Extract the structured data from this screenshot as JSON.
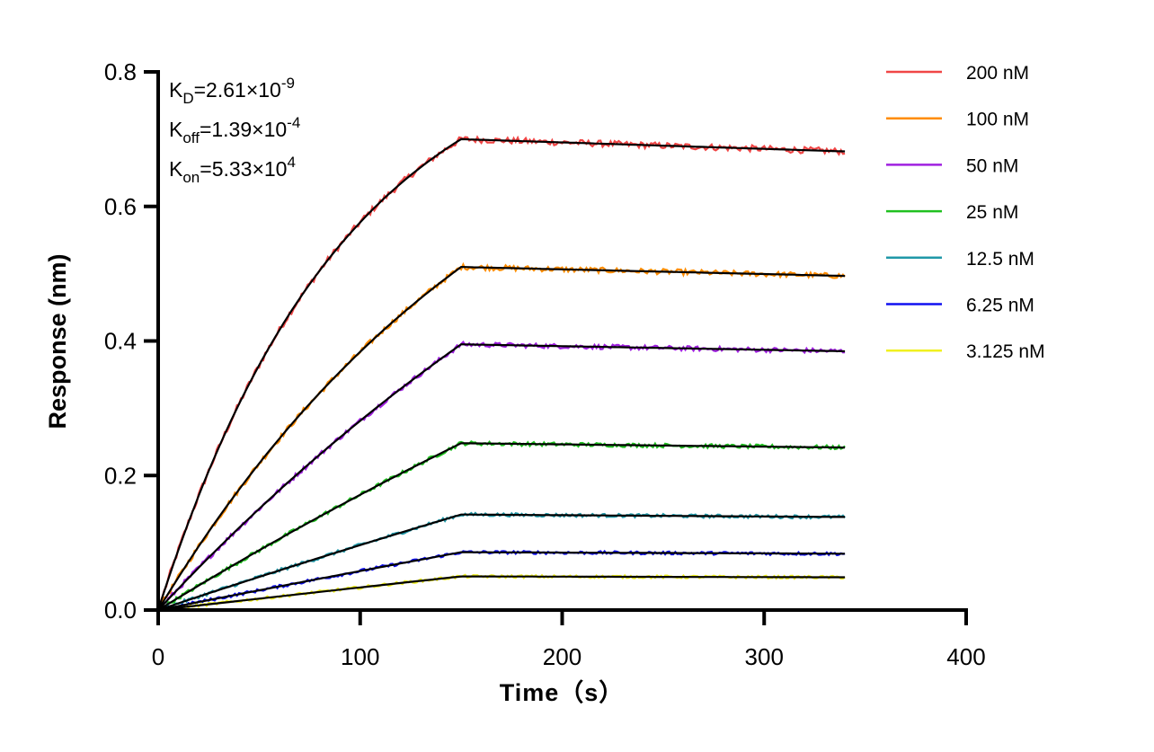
{
  "chart_data": {
    "type": "line",
    "title": "",
    "xlabel": "Time（s）",
    "ylabel": "Response (nm)",
    "xlim": [
      0,
      400
    ],
    "ylim": [
      0,
      0.8
    ],
    "xticks": [
      0,
      100,
      200,
      300,
      400
    ],
    "xtick_labels": [
      "0",
      "100",
      "200",
      "300",
      "400"
    ],
    "yticks": [
      0,
      0.2,
      0.4,
      0.6,
      0.8
    ],
    "ytick_labels": [
      "0.0",
      "0.2",
      "0.4",
      "0.6",
      "0.8"
    ],
    "grid": false,
    "legend_position": "top-right",
    "association_end_s": 150,
    "dissociation_end_s": 340,
    "kon": 53300,
    "koff": 0.000139,
    "fit_color": "#000000",
    "annotations": [
      {
        "base": "K",
        "sub": "D",
        "value": "=2.61×10",
        "exp": "-9"
      },
      {
        "base": "K",
        "sub": "off",
        "value": "=1.39×10",
        "exp": "-4"
      },
      {
        "base": "K",
        "sub": "on",
        "value": "=5.33×10",
        "exp": "4"
      }
    ],
    "series": [
      {
        "name": "200 nM",
        "conc_nM": 200,
        "color": "#f04646",
        "response_at_150s": 0.7
      },
      {
        "name": "100 nM",
        "conc_nM": 100,
        "color": "#ff8c00",
        "response_at_150s": 0.51
      },
      {
        "name": "50 nM",
        "conc_nM": 50,
        "color": "#a020e0",
        "response_at_150s": 0.395
      },
      {
        "name": "25 nM",
        "conc_nM": 25,
        "color": "#20c020",
        "response_at_150s": 0.248
      },
      {
        "name": "12.5 nM",
        "conc_nM": 12.5,
        "color": "#2098a8",
        "response_at_150s": 0.142
      },
      {
        "name": "6.25 nM",
        "conc_nM": 6.25,
        "color": "#1010f0",
        "response_at_150s": 0.086
      },
      {
        "name": "3.125 nM",
        "conc_nM": 3.125,
        "color": "#f0f020",
        "response_at_150s": 0.05
      }
    ]
  }
}
